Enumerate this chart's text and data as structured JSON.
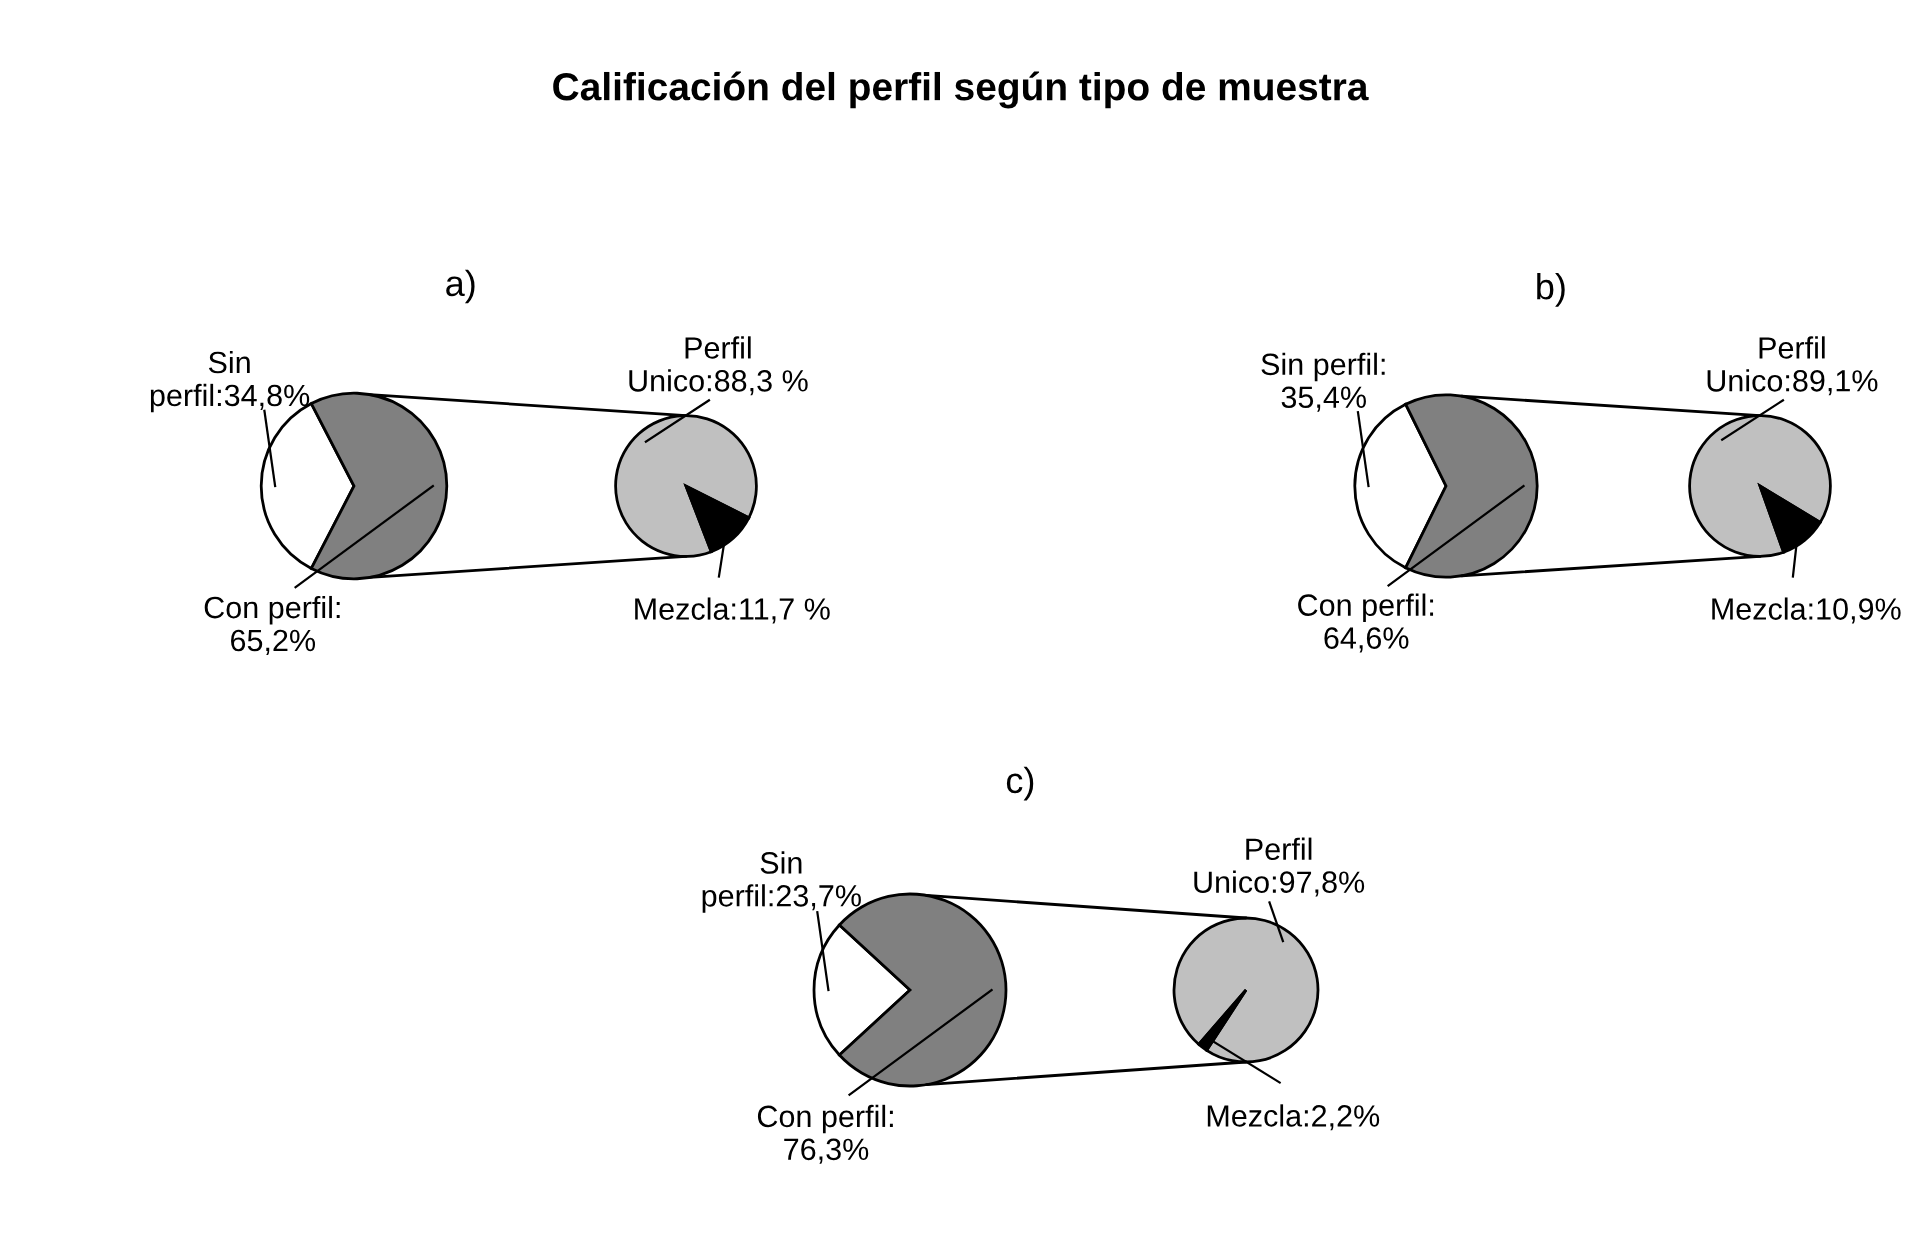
{
  "chart_data": [
    {
      "type": "pie",
      "title": "Calificación del perfil según tipo de muestra",
      "subtitle": "a)",
      "categories": [
        "Sin\nperfil:34,8%",
        "Con perfil:\n65,2%"
      ],
      "values": [
        34.8,
        65.2
      ],
      "colors": [
        "#ffffff",
        "#808080"
      ]
    },
    {
      "type": "pie",
      "categories": [
        "Perfil\nUnico:88,3 %",
        "Mezcla:11,7 %"
      ],
      "values": [
        88.3,
        11.7
      ],
      "colors": [
        "#c0c0c0",
        "#000000"
      ]
    },
    {
      "type": "pie",
      "subtitle": "b)",
      "categories": [
        "Sin perfil:\n35,4%",
        "Con perfil:\n64,6%"
      ],
      "values": [
        35.4,
        64.6
      ],
      "colors": [
        "#ffffff",
        "#808080"
      ]
    },
    {
      "type": "pie",
      "categories": [
        "Perfil\nUnico:89,1%",
        "Mezcla:10,9%"
      ],
      "values": [
        89.1,
        10.9
      ],
      "colors": [
        "#c0c0c0",
        "#000000"
      ]
    },
    {
      "type": "pie",
      "subtitle": "c)",
      "categories": [
        "Sin\nperfil:23,7%",
        "Con perfil:\n76,3%"
      ],
      "values": [
        23.7,
        76.3
      ],
      "colors": [
        "#ffffff",
        "#808080"
      ]
    },
    {
      "type": "pie",
      "categories": [
        "Perfil\nUnico:97,8%",
        "Mezcla:2,2%"
      ],
      "values": [
        97.8,
        2.2
      ],
      "colors": [
        "#c0c0c0",
        "#000000"
      ]
    }
  ]
}
